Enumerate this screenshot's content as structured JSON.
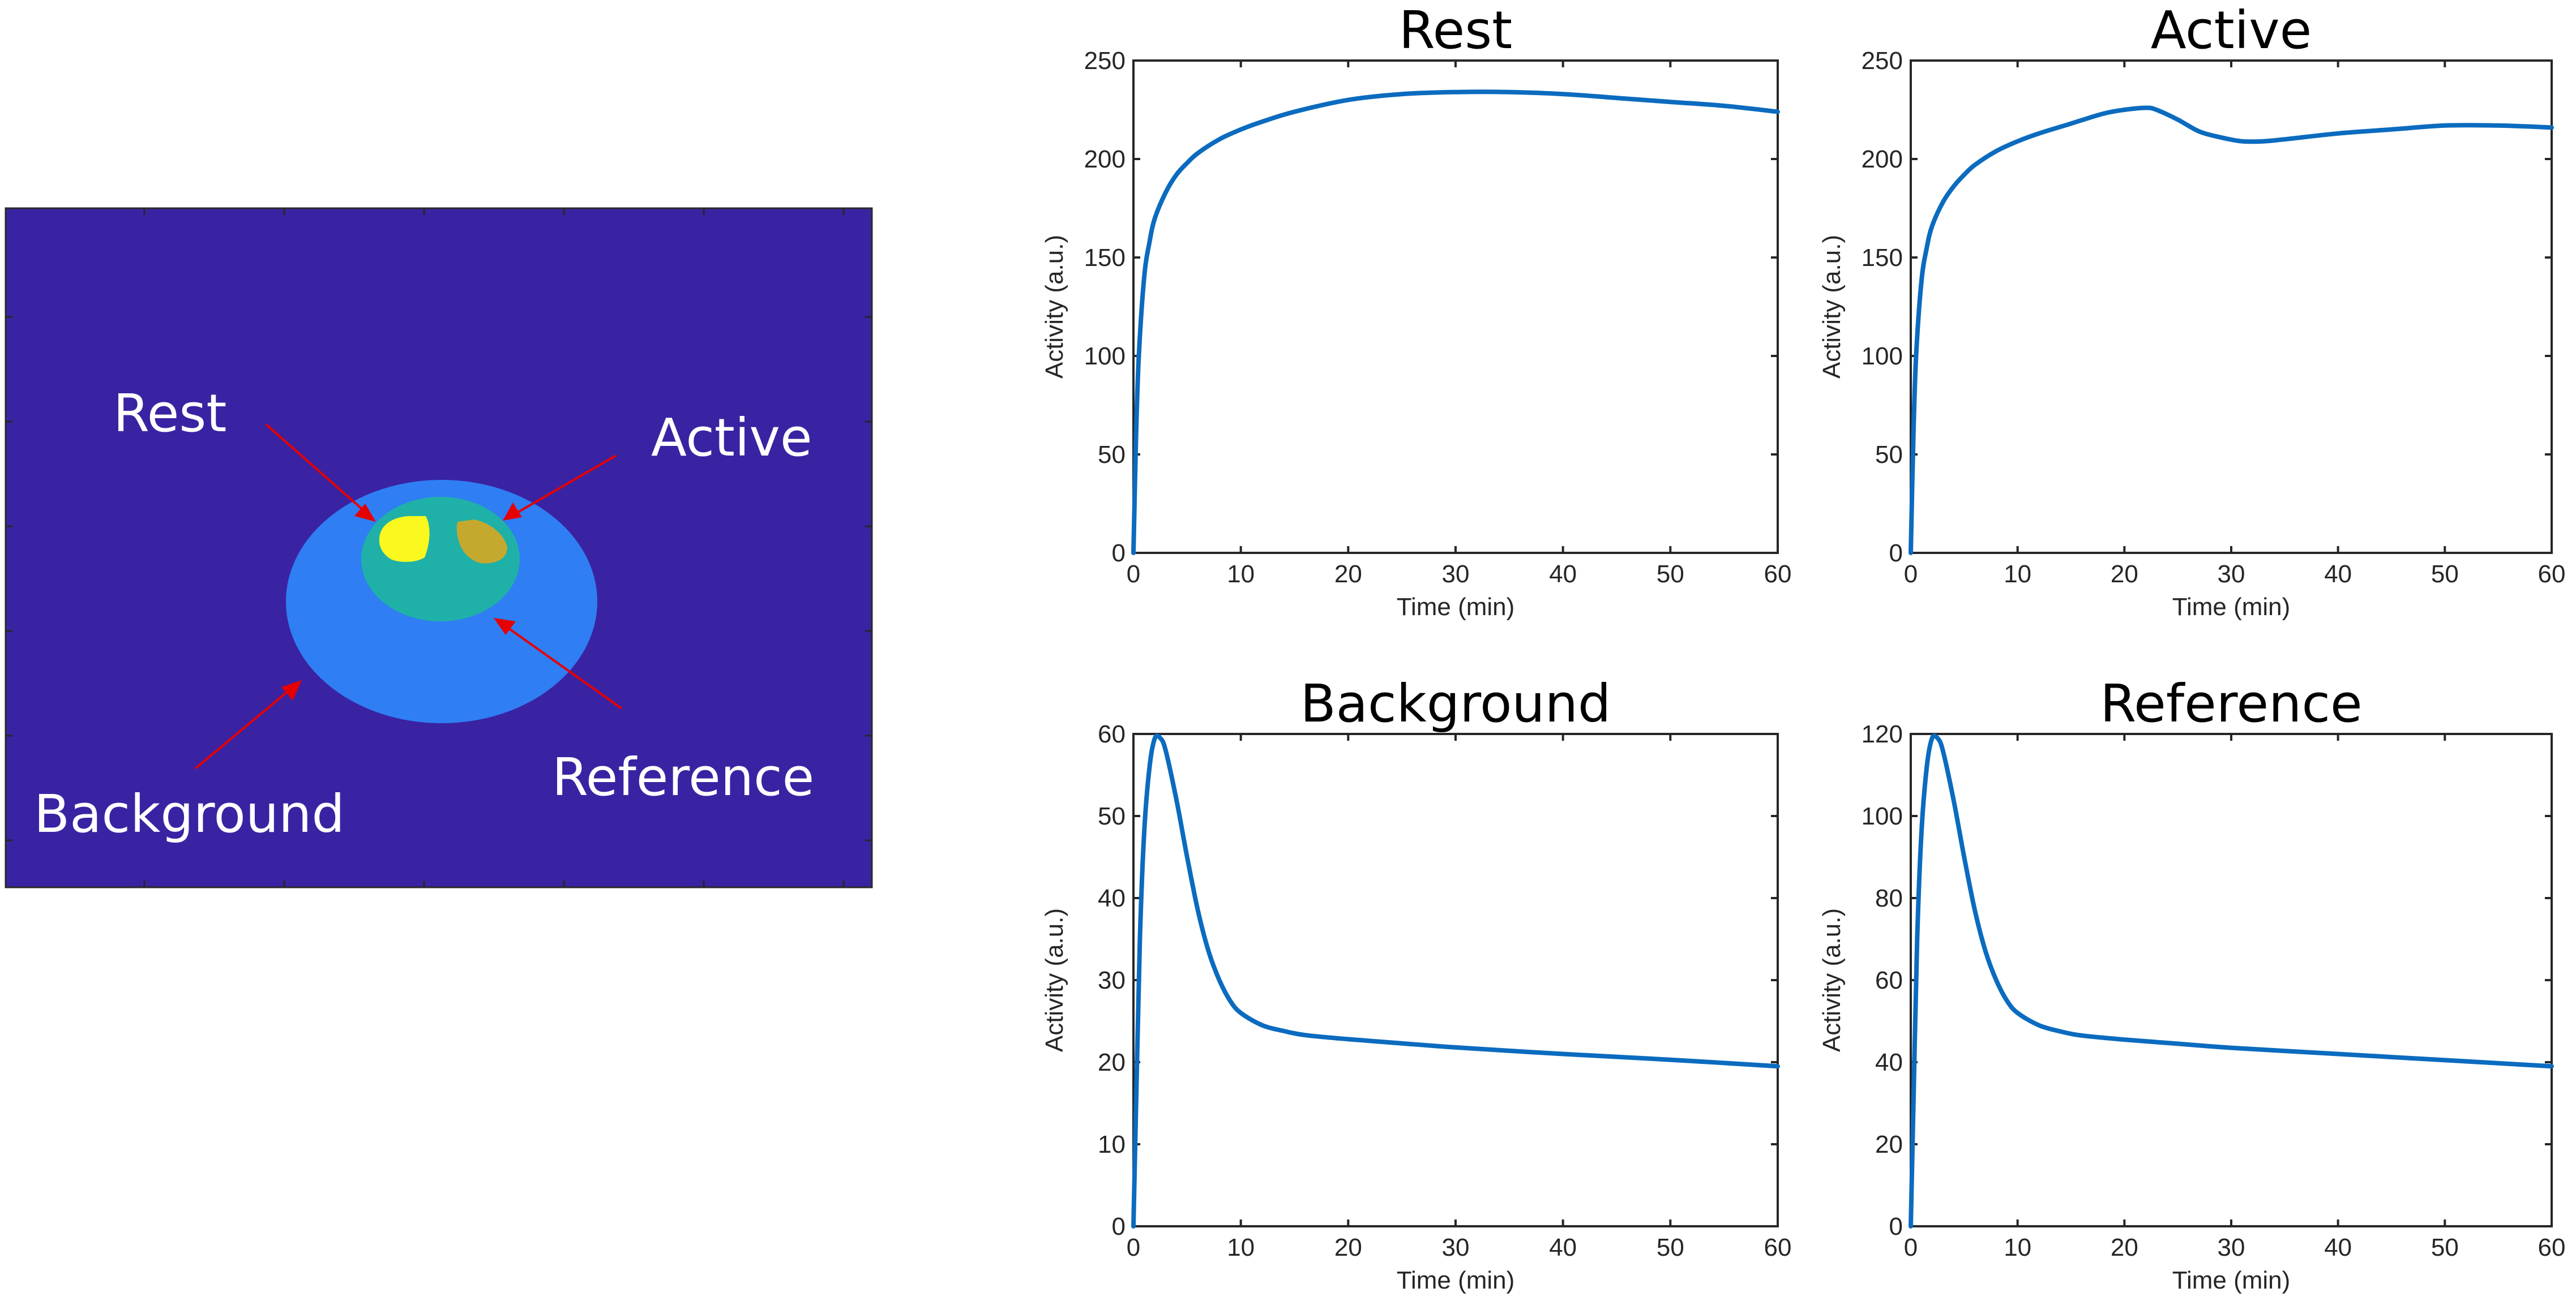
{
  "phantom": {
    "labels": {
      "rest": "Rest",
      "active": "Active",
      "reference": "Reference",
      "background": "Background"
    },
    "colors": {
      "outside": "#3a23a2",
      "background_region": "#2f7ef4",
      "reference_region": "#1fb1a8",
      "rest_region": "#faf81e",
      "active_region": "#c5a82e",
      "arrow": "#e60000"
    }
  },
  "chart_data": [
    {
      "type": "line",
      "title": "Rest",
      "xlabel": "Time (min)",
      "ylabel": "Activity (a.u.)",
      "xlim": [
        0,
        60
      ],
      "ylim": [
        0,
        250
      ],
      "xticks": [
        0,
        10,
        20,
        30,
        40,
        50,
        60
      ],
      "yticks": [
        0,
        50,
        100,
        150,
        200,
        250
      ],
      "grid": false,
      "line_color": "#0b6bbf",
      "x": [
        0,
        0.25,
        0.5,
        1,
        1.5,
        2,
        3,
        4,
        5,
        6,
        8,
        10,
        12,
        15,
        20,
        25,
        30,
        35,
        40,
        45,
        50,
        55,
        60
      ],
      "y": [
        0,
        60,
        100,
        140,
        158,
        170,
        183,
        192,
        198,
        203,
        210,
        215,
        219,
        224,
        230,
        233,
        234,
        234,
        233,
        231,
        229,
        227,
        224
      ]
    },
    {
      "type": "line",
      "title": "Active",
      "xlabel": "Time (min)",
      "ylabel": "Activity (a.u.)",
      "xlim": [
        0,
        60
      ],
      "ylim": [
        0,
        250
      ],
      "xticks": [
        0,
        10,
        20,
        30,
        40,
        50,
        60
      ],
      "yticks": [
        0,
        50,
        100,
        150,
        200,
        250
      ],
      "grid": false,
      "line_color": "#0b6bbf",
      "x": [
        0,
        0.25,
        0.5,
        1,
        1.5,
        2,
        3,
        4,
        5,
        6,
        8,
        10,
        12,
        15,
        18,
        20,
        22,
        23,
        25,
        27,
        29,
        31,
        33,
        35,
        40,
        45,
        50,
        55,
        60
      ],
      "y": [
        0,
        60,
        100,
        138,
        155,
        166,
        178,
        186,
        192,
        197,
        204,
        209,
        213,
        218,
        223,
        225,
        226,
        225,
        220,
        214,
        211,
        209,
        209,
        210,
        213,
        215,
        217,
        217,
        216
      ]
    },
    {
      "type": "line",
      "title": "Background",
      "xlabel": "Time (min)",
      "ylabel": "Activity (a.u.)",
      "xlim": [
        0,
        60
      ],
      "ylim": [
        0,
        60
      ],
      "xticks": [
        0,
        10,
        20,
        30,
        40,
        50,
        60
      ],
      "yticks": [
        0,
        10,
        20,
        30,
        40,
        50,
        60
      ],
      "grid": false,
      "line_color": "#0b6bbf",
      "x": [
        0,
        0.3,
        0.6,
        1,
        1.5,
        2,
        2.5,
        3,
        4,
        5,
        6,
        7,
        8,
        9,
        10,
        12,
        14,
        16,
        20,
        25,
        30,
        40,
        50,
        60
      ],
      "y": [
        0,
        18,
        35,
        48,
        56,
        59.5,
        59.5,
        58,
        52,
        45,
        38.5,
        33.5,
        30,
        27.5,
        26,
        24.5,
        23.8,
        23.3,
        22.8,
        22.3,
        21.8,
        21,
        20.3,
        19.5
      ]
    },
    {
      "type": "line",
      "title": "Reference",
      "xlabel": "Time (min)",
      "ylabel": "Activity (a.u.)",
      "xlim": [
        0,
        60
      ],
      "ylim": [
        0,
        120
      ],
      "xticks": [
        0,
        10,
        20,
        30,
        40,
        50,
        60
      ],
      "yticks": [
        0,
        20,
        40,
        60,
        80,
        100,
        120
      ],
      "grid": false,
      "line_color": "#0b6bbf",
      "x": [
        0,
        0.3,
        0.6,
        1,
        1.5,
        2,
        2.5,
        3,
        4,
        5,
        6,
        7,
        8,
        9,
        10,
        12,
        14,
        16,
        20,
        25,
        30,
        40,
        50,
        60
      ],
      "y": [
        0,
        36,
        70,
        96,
        112,
        119,
        119,
        116,
        104,
        90,
        77,
        67,
        60,
        55,
        52,
        49,
        47.5,
        46.5,
        45.5,
        44.5,
        43.5,
        42,
        40.5,
        39
      ]
    }
  ]
}
